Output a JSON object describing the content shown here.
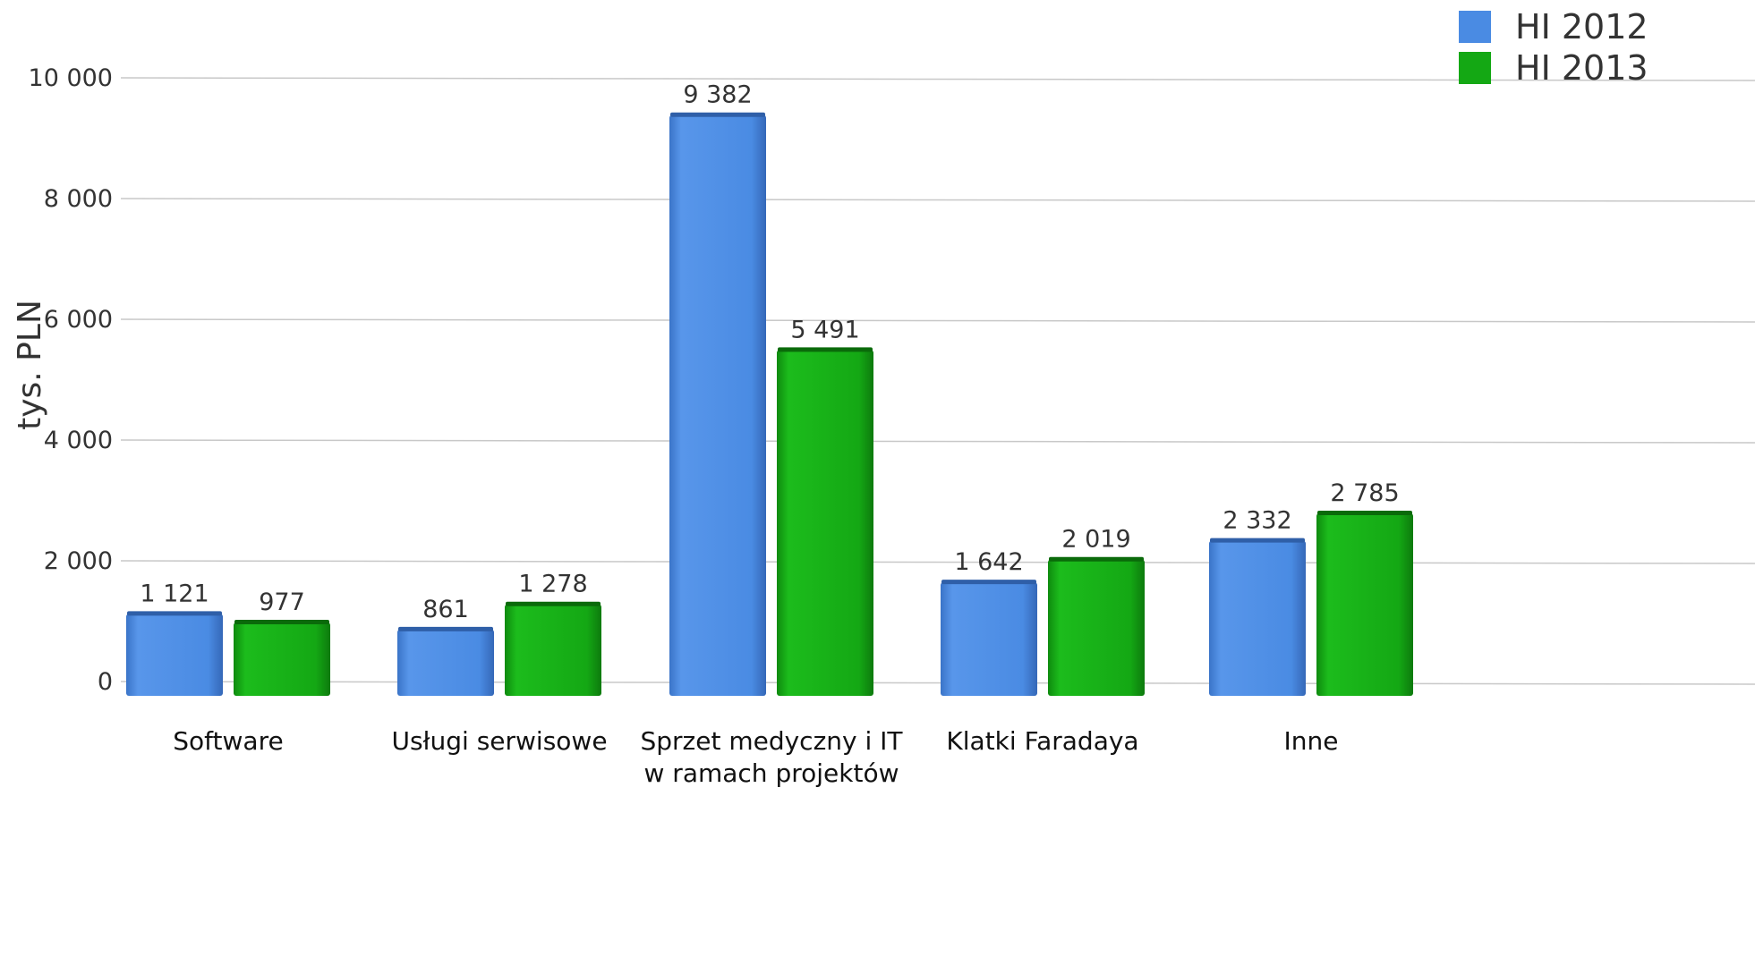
{
  "chart_data": {
    "type": "bar",
    "title": "",
    "xlabel": "",
    "ylabel": "tys. PLN",
    "ylim": [
      0,
      10000
    ],
    "yticks": [
      0,
      2000,
      4000,
      6000,
      8000,
      10000
    ],
    "ytick_labels": [
      "0",
      "2 000",
      "4 000",
      "6 000",
      "8 000",
      "10 000"
    ],
    "grid": true,
    "legend_position": "top-right",
    "categories": [
      [
        "Software"
      ],
      [
        "Usługi serwisowe"
      ],
      [
        "Sprzet medyczny i IT",
        "w ramach projektów"
      ],
      [
        "Klatki Faradaya"
      ],
      [
        "Inne"
      ]
    ],
    "series": [
      {
        "name": "HI 2012",
        "color": "#4a8be3",
        "values": [
          1121,
          861,
          9382,
          1642,
          2332
        ],
        "labels": [
          "1 121",
          "861",
          "9 382",
          "1 642",
          "2 332"
        ]
      },
      {
        "name": "HI 2013",
        "color": "#14a814",
        "values": [
          977,
          1278,
          5491,
          2019,
          2785
        ],
        "labels": [
          "977",
          "1 278",
          "5 491",
          "2 019",
          "2 785"
        ]
      }
    ]
  }
}
